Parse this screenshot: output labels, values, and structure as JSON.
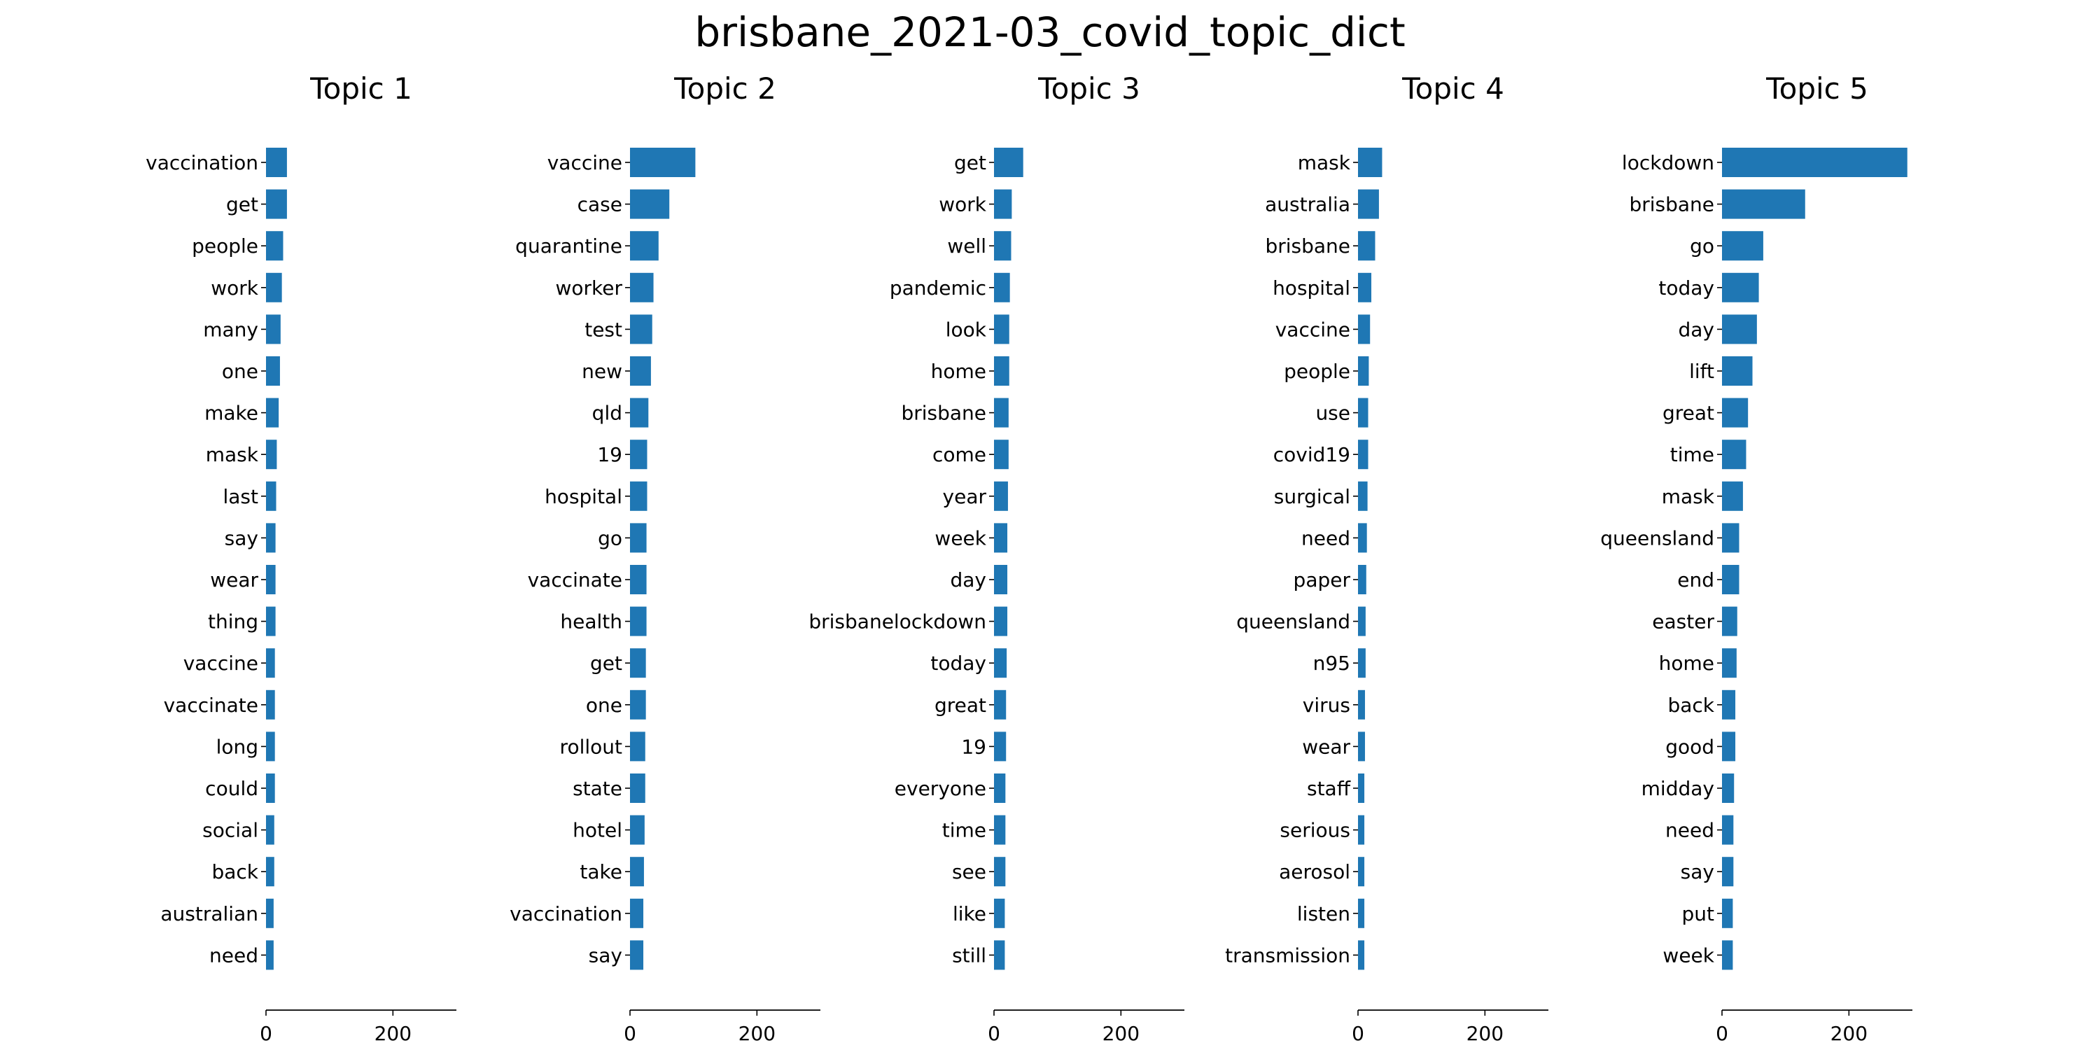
{
  "figure_title": "brisbane_2021-03_covid_topic_dict",
  "colors": {
    "bar": "#1f77b4",
    "axis": "#000000"
  },
  "chart_data": [
    {
      "type": "bar",
      "orientation": "horizontal",
      "title": "Topic 1",
      "xlim": [
        0,
        300
      ],
      "xticks": [
        0,
        200
      ],
      "categories": [
        "vaccination",
        "get",
        "people",
        "work",
        "many",
        "one",
        "make",
        "mask",
        "last",
        "say",
        "wear",
        "thing",
        "vaccine",
        "vaccinate",
        "long",
        "could",
        "social",
        "back",
        "australian",
        "need"
      ],
      "values": [
        33,
        33,
        27,
        25,
        23,
        22,
        20,
        17,
        16,
        15,
        15,
        15,
        14,
        14,
        14,
        14,
        13,
        13,
        12,
        12
      ]
    },
    {
      "type": "bar",
      "orientation": "horizontal",
      "title": "Topic 2",
      "xlim": [
        0,
        300
      ],
      "xticks": [
        0,
        200
      ],
      "categories": [
        "vaccine",
        "case",
        "quarantine",
        "worker",
        "test",
        "new",
        "qld",
        "19",
        "hospital",
        "go",
        "vaccinate",
        "health",
        "get",
        "one",
        "rollout",
        "state",
        "hotel",
        "take",
        "vaccination",
        "say"
      ],
      "values": [
        103,
        62,
        45,
        37,
        35,
        33,
        29,
        27,
        27,
        26,
        26,
        26,
        25,
        25,
        24,
        24,
        23,
        22,
        21,
        21
      ]
    },
    {
      "type": "bar",
      "orientation": "horizontal",
      "title": "Topic 3",
      "xlim": [
        0,
        300
      ],
      "xticks": [
        0,
        200
      ],
      "categories": [
        "get",
        "work",
        "well",
        "pandemic",
        "look",
        "home",
        "brisbane",
        "come",
        "year",
        "week",
        "day",
        "brisbanelockdown",
        "today",
        "great",
        "19",
        "everyone",
        "time",
        "see",
        "like",
        "still"
      ],
      "values": [
        46,
        28,
        27,
        25,
        24,
        24,
        23,
        23,
        22,
        21,
        21,
        21,
        20,
        19,
        19,
        18,
        18,
        18,
        17,
        17
      ]
    },
    {
      "type": "bar",
      "orientation": "horizontal",
      "title": "Topic 4",
      "xlim": [
        0,
        300
      ],
      "xticks": [
        0,
        200
      ],
      "categories": [
        "mask",
        "australia",
        "brisbane",
        "hospital",
        "vaccine",
        "people",
        "use",
        "covid19",
        "surgical",
        "need",
        "paper",
        "queensland",
        "n95",
        "virus",
        "wear",
        "staff",
        "serious",
        "aerosol",
        "listen",
        "transmission"
      ],
      "values": [
        38,
        33,
        27,
        21,
        19,
        17,
        16,
        16,
        15,
        14,
        13,
        12,
        12,
        11,
        11,
        10,
        10,
        10,
        10,
        10
      ]
    },
    {
      "type": "bar",
      "orientation": "horizontal",
      "title": "Topic 5",
      "xlim": [
        0,
        300
      ],
      "xticks": [
        0,
        200
      ],
      "categories": [
        "lockdown",
        "brisbane",
        "go",
        "today",
        "day",
        "lift",
        "great",
        "time",
        "mask",
        "queensland",
        "end",
        "easter",
        "home",
        "back",
        "good",
        "midday",
        "need",
        "say",
        "put",
        "week"
      ],
      "values": [
        292,
        131,
        65,
        58,
        55,
        48,
        41,
        38,
        33,
        27,
        27,
        24,
        23,
        21,
        21,
        19,
        18,
        18,
        17,
        17
      ]
    }
  ]
}
